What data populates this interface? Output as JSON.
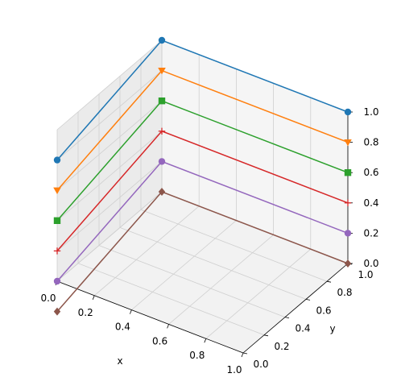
{
  "chart_data": {
    "type": "line",
    "projection": "3d",
    "xlabel": "x",
    "ylabel": "y",
    "zlabel": "",
    "xlim": [
      0.0,
      1.0
    ],
    "ylim": [
      0.0,
      1.0
    ],
    "zlim": [
      0.0,
      1.0
    ],
    "xticks": [
      "0.0",
      "0.2",
      "0.4",
      "0.6",
      "0.8",
      "1.0"
    ],
    "yticks": [
      "0.0",
      "0.2",
      "0.4",
      "0.6",
      "0.8",
      "1.0"
    ],
    "zticks": [
      "0.0",
      "0.2",
      "0.4",
      "0.6",
      "0.8",
      "1.0"
    ],
    "grid": true,
    "series": [
      {
        "color": "#1f77b4",
        "marker": "circle",
        "points": [
          [
            0,
            0,
            0.8
          ],
          [
            0,
            1,
            1.0
          ],
          [
            1,
            1,
            1.0
          ]
        ]
      },
      {
        "color": "#ff7f0e",
        "marker": "triangle-down",
        "points": [
          [
            0,
            0,
            0.6
          ],
          [
            0,
            1,
            0.8
          ],
          [
            1,
            1,
            0.8
          ]
        ]
      },
      {
        "color": "#2ca02c",
        "marker": "square",
        "points": [
          [
            0,
            0,
            0.4
          ],
          [
            0,
            1,
            0.6
          ],
          [
            1,
            1,
            0.6
          ]
        ]
      },
      {
        "color": "#d62728",
        "marker": "plus",
        "points": [
          [
            0,
            0,
            0.2
          ],
          [
            0,
            1,
            0.4
          ],
          [
            1,
            1,
            0.4
          ]
        ]
      },
      {
        "color": "#9467bd",
        "marker": "circle",
        "points": [
          [
            0,
            0,
            0.0
          ],
          [
            0,
            1,
            0.2
          ],
          [
            1,
            1,
            0.2
          ]
        ]
      },
      {
        "color": "#8c564b",
        "marker": "diamond",
        "points": [
          [
            0,
            0,
            -0.2
          ],
          [
            0,
            1,
            0.0
          ],
          [
            1,
            1,
            0.0
          ]
        ]
      }
    ]
  }
}
